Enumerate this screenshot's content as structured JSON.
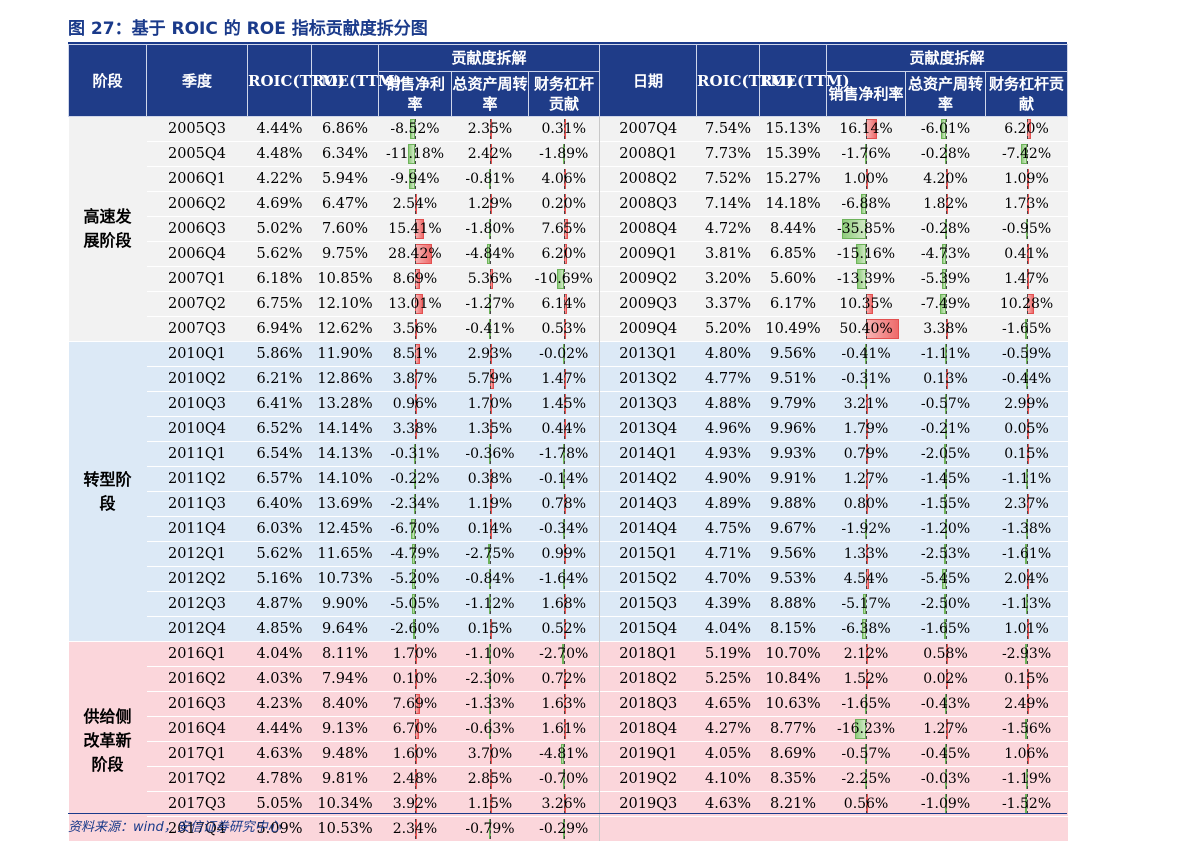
{
  "title": "图 27：基于 ROIC 的 ROE 指标贡献度拆分图",
  "source": "资料来源：wind，安信证券研究中心",
  "colors": {
    "header": "#1f3c88",
    "positive": "#ee6b6b",
    "negative": "#8fcc7b",
    "stage_gray": "#f2f2f2",
    "stage_blue": "#dce9f6",
    "stage_pink": "#fbd6db"
  },
  "headers": {
    "stage": "阶段",
    "quarter": "季度",
    "date": "日期",
    "roic": "ROIC(TTM)",
    "roe": "ROE(TTM)",
    "group": "贡献度拆解",
    "margin": "销售净利率",
    "turnover": "总资产周转率",
    "leverage": "财务杠杆贡献"
  },
  "stages": [
    {
      "label": "高速发展阶段",
      "rows": 9
    },
    {
      "label": "转型阶段",
      "rows": 12
    },
    {
      "label": "供给侧改革新阶段",
      "rows": 8
    }
  ],
  "scale_max": 55,
  "rows": [
    {
      "left": {
        "q": "2005Q3",
        "roic": "4.44%",
        "roe": "6.86%",
        "c": [
          "-8.52%",
          "2.35%",
          "0.31%"
        ]
      },
      "right": {
        "q": "2007Q4",
        "roic": "7.54%",
        "roe": "15.13%",
        "c": [
          "16.14%",
          "-6.01%",
          "6.20%"
        ]
      }
    },
    {
      "left": {
        "q": "2005Q4",
        "roic": "4.48%",
        "roe": "6.34%",
        "c": [
          "-11.18%",
          "2.42%",
          "-1.89%"
        ]
      },
      "right": {
        "q": "2008Q1",
        "roic": "7.73%",
        "roe": "15.39%",
        "c": [
          "-1.76%",
          "-0.28%",
          "-7.42%"
        ]
      }
    },
    {
      "left": {
        "q": "2006Q1",
        "roic": "4.22%",
        "roe": "5.94%",
        "c": [
          "-9.94%",
          "-0.81%",
          "4.06%"
        ]
      },
      "right": {
        "q": "2008Q2",
        "roic": "7.52%",
        "roe": "15.27%",
        "c": [
          "1.00%",
          "4.20%",
          "1.09%"
        ]
      }
    },
    {
      "left": {
        "q": "2006Q2",
        "roic": "4.69%",
        "roe": "6.47%",
        "c": [
          "2.54%",
          "1.29%",
          "0.20%"
        ]
      },
      "right": {
        "q": "2008Q3",
        "roic": "7.14%",
        "roe": "14.18%",
        "c": [
          "-6.88%",
          "1.82%",
          "1.73%"
        ]
      }
    },
    {
      "left": {
        "q": "2006Q3",
        "roic": "5.02%",
        "roe": "7.60%",
        "c": [
          "15.41%",
          "-1.80%",
          "7.65%"
        ]
      },
      "right": {
        "q": "2008Q4",
        "roic": "4.72%",
        "roe": "8.44%",
        "c": [
          "-35.85%",
          "-0.28%",
          "-0.95%"
        ]
      }
    },
    {
      "left": {
        "q": "2006Q4",
        "roic": "5.62%",
        "roe": "9.75%",
        "c": [
          "28.42%",
          "-4.84%",
          "6.20%"
        ]
      },
      "right": {
        "q": "2009Q1",
        "roic": "3.81%",
        "roe": "6.85%",
        "c": [
          "-15.16%",
          "-4.73%",
          "0.41%"
        ]
      }
    },
    {
      "left": {
        "q": "2007Q1",
        "roic": "6.18%",
        "roe": "10.85%",
        "c": [
          "8.69%",
          "5.36%",
          "-10.69%"
        ]
      },
      "right": {
        "q": "2009Q2",
        "roic": "3.20%",
        "roe": "5.60%",
        "c": [
          "-13.39%",
          "-5.39%",
          "1.47%"
        ]
      }
    },
    {
      "left": {
        "q": "2007Q2",
        "roic": "6.75%",
        "roe": "12.10%",
        "c": [
          "13.01%",
          "-1.27%",
          "6.14%"
        ]
      },
      "right": {
        "q": "2009Q3",
        "roic": "3.37%",
        "roe": "6.17%",
        "c": [
          "10.35%",
          "-7.49%",
          "10.28%"
        ]
      }
    },
    {
      "left": {
        "q": "2007Q3",
        "roic": "6.94%",
        "roe": "12.62%",
        "c": [
          "3.56%",
          "-0.41%",
          "0.53%"
        ]
      },
      "right": {
        "q": "2009Q4",
        "roic": "5.20%",
        "roe": "10.49%",
        "c": [
          "50.40%",
          "3.38%",
          "-1.65%"
        ]
      }
    },
    {
      "left": {
        "q": "2010Q1",
        "roic": "5.86%",
        "roe": "11.90%",
        "c": [
          "8.51%",
          "2.93%",
          "-0.02%"
        ]
      },
      "right": {
        "q": "2013Q1",
        "roic": "4.80%",
        "roe": "9.56%",
        "c": [
          "-0.41%",
          "-1.11%",
          "-0.59%"
        ]
      }
    },
    {
      "left": {
        "q": "2010Q2",
        "roic": "6.21%",
        "roe": "12.86%",
        "c": [
          "3.87%",
          "5.79%",
          "1.47%"
        ]
      },
      "right": {
        "q": "2013Q2",
        "roic": "4.77%",
        "roe": "9.51%",
        "c": [
          "-0.31%",
          "0.13%",
          "-0.44%"
        ]
      }
    },
    {
      "left": {
        "q": "2010Q3",
        "roic": "6.41%",
        "roe": "13.28%",
        "c": [
          "0.96%",
          "1.70%",
          "1.45%"
        ]
      },
      "right": {
        "q": "2013Q3",
        "roic": "4.88%",
        "roe": "9.79%",
        "c": [
          "3.21%",
          "-0.57%",
          "2.99%"
        ]
      }
    },
    {
      "left": {
        "q": "2010Q4",
        "roic": "6.52%",
        "roe": "14.14%",
        "c": [
          "3.38%",
          "1.35%",
          "0.44%"
        ]
      },
      "right": {
        "q": "2013Q4",
        "roic": "4.96%",
        "roe": "9.96%",
        "c": [
          "1.79%",
          "-0.21%",
          "0.05%"
        ]
      }
    },
    {
      "left": {
        "q": "2011Q1",
        "roic": "6.54%",
        "roe": "14.13%",
        "c": [
          "-0.31%",
          "-0.36%",
          "-1.78%"
        ]
      },
      "right": {
        "q": "2014Q1",
        "roic": "4.93%",
        "roe": "9.93%",
        "c": [
          "0.79%",
          "-2.05%",
          "0.15%"
        ]
      }
    },
    {
      "left": {
        "q": "2011Q2",
        "roic": "6.57%",
        "roe": "14.10%",
        "c": [
          "-0.22%",
          "0.38%",
          "-0.14%"
        ]
      },
      "right": {
        "q": "2014Q2",
        "roic": "4.90%",
        "roe": "9.91%",
        "c": [
          "1.27%",
          "-1.45%",
          "-1.11%"
        ]
      }
    },
    {
      "left": {
        "q": "2011Q3",
        "roic": "6.40%",
        "roe": "13.69%",
        "c": [
          "-2.34%",
          "1.19%",
          "0.78%"
        ]
      },
      "right": {
        "q": "2014Q3",
        "roic": "4.89%",
        "roe": "9.88%",
        "c": [
          "0.80%",
          "-1.55%",
          "2.37%"
        ]
      }
    },
    {
      "left": {
        "q": "2011Q4",
        "roic": "6.03%",
        "roe": "12.45%",
        "c": [
          "-6.70%",
          "0.14%",
          "-0.34%"
        ]
      },
      "right": {
        "q": "2014Q4",
        "roic": "4.75%",
        "roe": "9.67%",
        "c": [
          "-1.92%",
          "-1.20%",
          "-1.38%"
        ]
      }
    },
    {
      "left": {
        "q": "2012Q1",
        "roic": "5.62%",
        "roe": "11.65%",
        "c": [
          "-4.79%",
          "-2.75%",
          "0.99%"
        ]
      },
      "right": {
        "q": "2015Q1",
        "roic": "4.71%",
        "roe": "9.56%",
        "c": [
          "1.33%",
          "-2.53%",
          "-1.61%"
        ]
      }
    },
    {
      "left": {
        "q": "2012Q2",
        "roic": "5.16%",
        "roe": "10.73%",
        "c": [
          "-5.20%",
          "-0.84%",
          "-1.64%"
        ]
      },
      "right": {
        "q": "2015Q2",
        "roic": "4.70%",
        "roe": "9.53%",
        "c": [
          "4.54%",
          "-5.45%",
          "2.04%"
        ]
      }
    },
    {
      "left": {
        "q": "2012Q3",
        "roic": "4.87%",
        "roe": "9.90%",
        "c": [
          "-5.05%",
          "-1.12%",
          "1.68%"
        ]
      },
      "right": {
        "q": "2015Q3",
        "roic": "4.39%",
        "roe": "8.88%",
        "c": [
          "-5.17%",
          "-2.50%",
          "-1.13%"
        ]
      }
    },
    {
      "left": {
        "q": "2012Q4",
        "roic": "4.85%",
        "roe": "9.64%",
        "c": [
          "-2.60%",
          "0.15%",
          "0.52%"
        ]
      },
      "right": {
        "q": "2015Q4",
        "roic": "4.04%",
        "roe": "8.15%",
        "c": [
          "-6.38%",
          "-1.65%",
          "1.01%"
        ]
      }
    },
    {
      "left": {
        "q": "2016Q1",
        "roic": "4.04%",
        "roe": "8.11%",
        "c": [
          "1.70%",
          "-1.10%",
          "-2.70%"
        ]
      },
      "right": {
        "q": "2018Q1",
        "roic": "5.19%",
        "roe": "10.70%",
        "c": [
          "2.12%",
          "0.58%",
          "-2.93%"
        ]
      }
    },
    {
      "left": {
        "q": "2016Q2",
        "roic": "4.03%",
        "roe": "7.94%",
        "c": [
          "0.10%",
          "-2.30%",
          "0.72%"
        ]
      },
      "right": {
        "q": "2018Q2",
        "roic": "5.25%",
        "roe": "10.84%",
        "c": [
          "1.52%",
          "0.02%",
          "0.15%"
        ]
      }
    },
    {
      "left": {
        "q": "2016Q3",
        "roic": "4.23%",
        "roe": "8.40%",
        "c": [
          "7.69%",
          "-1.33%",
          "1.63%"
        ]
      },
      "right": {
        "q": "2018Q3",
        "roic": "4.65%",
        "roe": "10.63%",
        "c": [
          "-1.65%",
          "-0.43%",
          "2.49%"
        ]
      }
    },
    {
      "left": {
        "q": "2016Q4",
        "roic": "4.44%",
        "roe": "9.13%",
        "c": [
          "6.70%",
          "-0.63%",
          "1.61%"
        ]
      },
      "right": {
        "q": "2018Q4",
        "roic": "4.27%",
        "roe": "8.77%",
        "c": [
          "-16.23%",
          "1.27%",
          "-1.56%"
        ]
      }
    },
    {
      "left": {
        "q": "2017Q1",
        "roic": "4.63%",
        "roe": "9.48%",
        "c": [
          "1.60%",
          "3.70%",
          "-4.81%"
        ]
      },
      "right": {
        "q": "2019Q1",
        "roic": "4.05%",
        "roe": "8.69%",
        "c": [
          "-0.57%",
          "-0.45%",
          "1.06%"
        ]
      }
    },
    {
      "left": {
        "q": "2017Q2",
        "roic": "4.78%",
        "roe": "9.81%",
        "c": [
          "2.48%",
          "2.85%",
          "-0.70%"
        ]
      },
      "right": {
        "q": "2019Q2",
        "roic": "4.10%",
        "roe": "8.35%",
        "c": [
          "-2.25%",
          "-0.03%",
          "-1.19%"
        ]
      }
    },
    {
      "left": {
        "q": "2017Q3",
        "roic": "5.05%",
        "roe": "10.34%",
        "c": [
          "3.92%",
          "1.15%",
          "3.26%"
        ]
      },
      "right": {
        "q": "2019Q3",
        "roic": "4.63%",
        "roe": "8.21%",
        "c": [
          "0.56%",
          "-1.09%",
          "-1.52%"
        ]
      }
    },
    {
      "left": {
        "q": "2017Q4",
        "roic": "5.09%",
        "roe": "10.53%",
        "c": [
          "2.34%",
          "-0.79%",
          "-0.29%"
        ]
      },
      "right": null
    }
  ]
}
